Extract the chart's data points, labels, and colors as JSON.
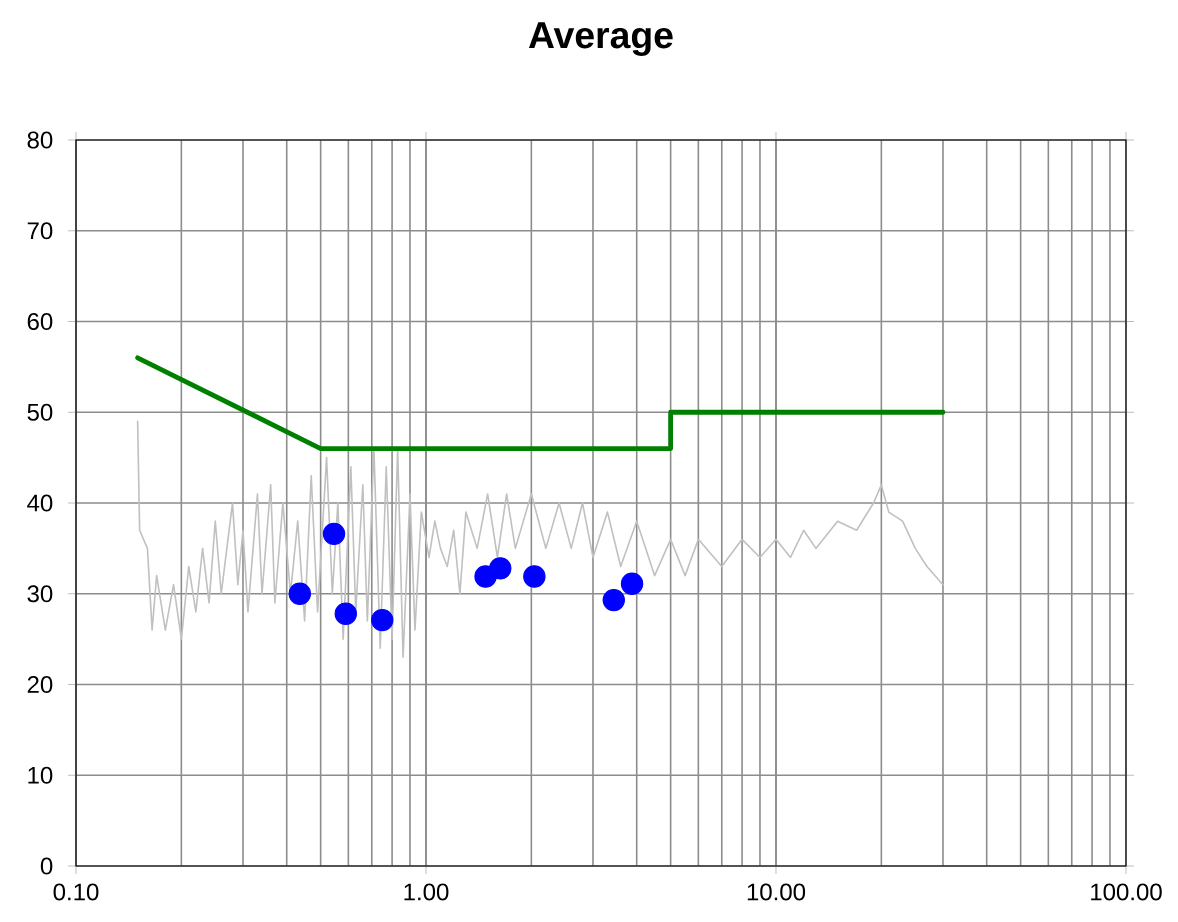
{
  "chart_data": {
    "type": "line",
    "title": "Average",
    "xlim": [
      0.1,
      100
    ],
    "ylim": [
      0,
      80
    ],
    "log": "x",
    "grid": true,
    "xticks": [
      {
        "value": 0.1,
        "label": "0.10"
      },
      {
        "value": 1,
        "label": "1.00"
      },
      {
        "value": 10,
        "label": "10.00"
      },
      {
        "value": 100,
        "label": "100.00"
      }
    ],
    "yticks": [
      0,
      10,
      20,
      30,
      40,
      50,
      60,
      70,
      80
    ],
    "series": [
      {
        "color": "#c0c0c0",
        "marker": "none",
        "x": [
          0.15,
          0.152,
          0.16,
          0.165,
          0.17,
          0.18,
          0.19,
          0.2,
          0.21,
          0.22,
          0.23,
          0.24,
          0.25,
          0.26,
          0.28,
          0.29,
          0.3,
          0.31,
          0.33,
          0.34,
          0.36,
          0.37,
          0.39,
          0.41,
          0.43,
          0.45,
          0.47,
          0.49,
          0.52,
          0.54,
          0.56,
          0.58,
          0.61,
          0.63,
          0.66,
          0.68,
          0.71,
          0.74,
          0.77,
          0.8,
          0.83,
          0.86,
          0.9,
          0.93,
          0.97,
          1.02,
          1.06,
          1.1,
          1.15,
          1.2,
          1.25,
          1.3,
          1.4,
          1.5,
          1.6,
          1.7,
          1.8,
          2.0,
          2.2,
          2.4,
          2.6,
          2.8,
          3.0,
          3.3,
          3.6,
          4.0,
          4.5,
          5.0,
          5.5,
          6.0,
          7.0,
          8.0,
          9.0,
          10,
          11,
          12,
          13,
          15,
          17,
          19,
          20,
          21,
          23,
          25,
          27,
          30
        ],
        "values": [
          49,
          37,
          35,
          26,
          32,
          26,
          31,
          25,
          33,
          28,
          35,
          29,
          38,
          30,
          40,
          31,
          37,
          28,
          41,
          30,
          42,
          29,
          40,
          30,
          38,
          27,
          43,
          28,
          45,
          30,
          40,
          25,
          44,
          28,
          42,
          27,
          46,
          24,
          44,
          25,
          46,
          23,
          41,
          26,
          39,
          34,
          38,
          35,
          33,
          37,
          30,
          39,
          35,
          41,
          34,
          41,
          35,
          41,
          35,
          40,
          35,
          40,
          34,
          39,
          33,
          38,
          32,
          36,
          32,
          36,
          33,
          36,
          34,
          36,
          34,
          37,
          35,
          38,
          37,
          40,
          42,
          39,
          38,
          35,
          33,
          31
        ]
      },
      {
        "color": "#008000",
        "marker": "none",
        "x": [
          0.15,
          0.5,
          5,
          5,
          30
        ],
        "values": [
          56,
          46,
          46,
          50,
          50
        ]
      },
      {
        "type": "scatter",
        "color": "#0000ff",
        "marker": "circle",
        "x": [
          0.436,
          0.546,
          0.59,
          0.75,
          1.48,
          1.63,
          2.04,
          3.44,
          3.88
        ],
        "values": [
          30.0,
          36.6,
          27.8,
          27.1,
          31.9,
          32.8,
          31.9,
          29.3,
          31.1
        ]
      }
    ]
  }
}
